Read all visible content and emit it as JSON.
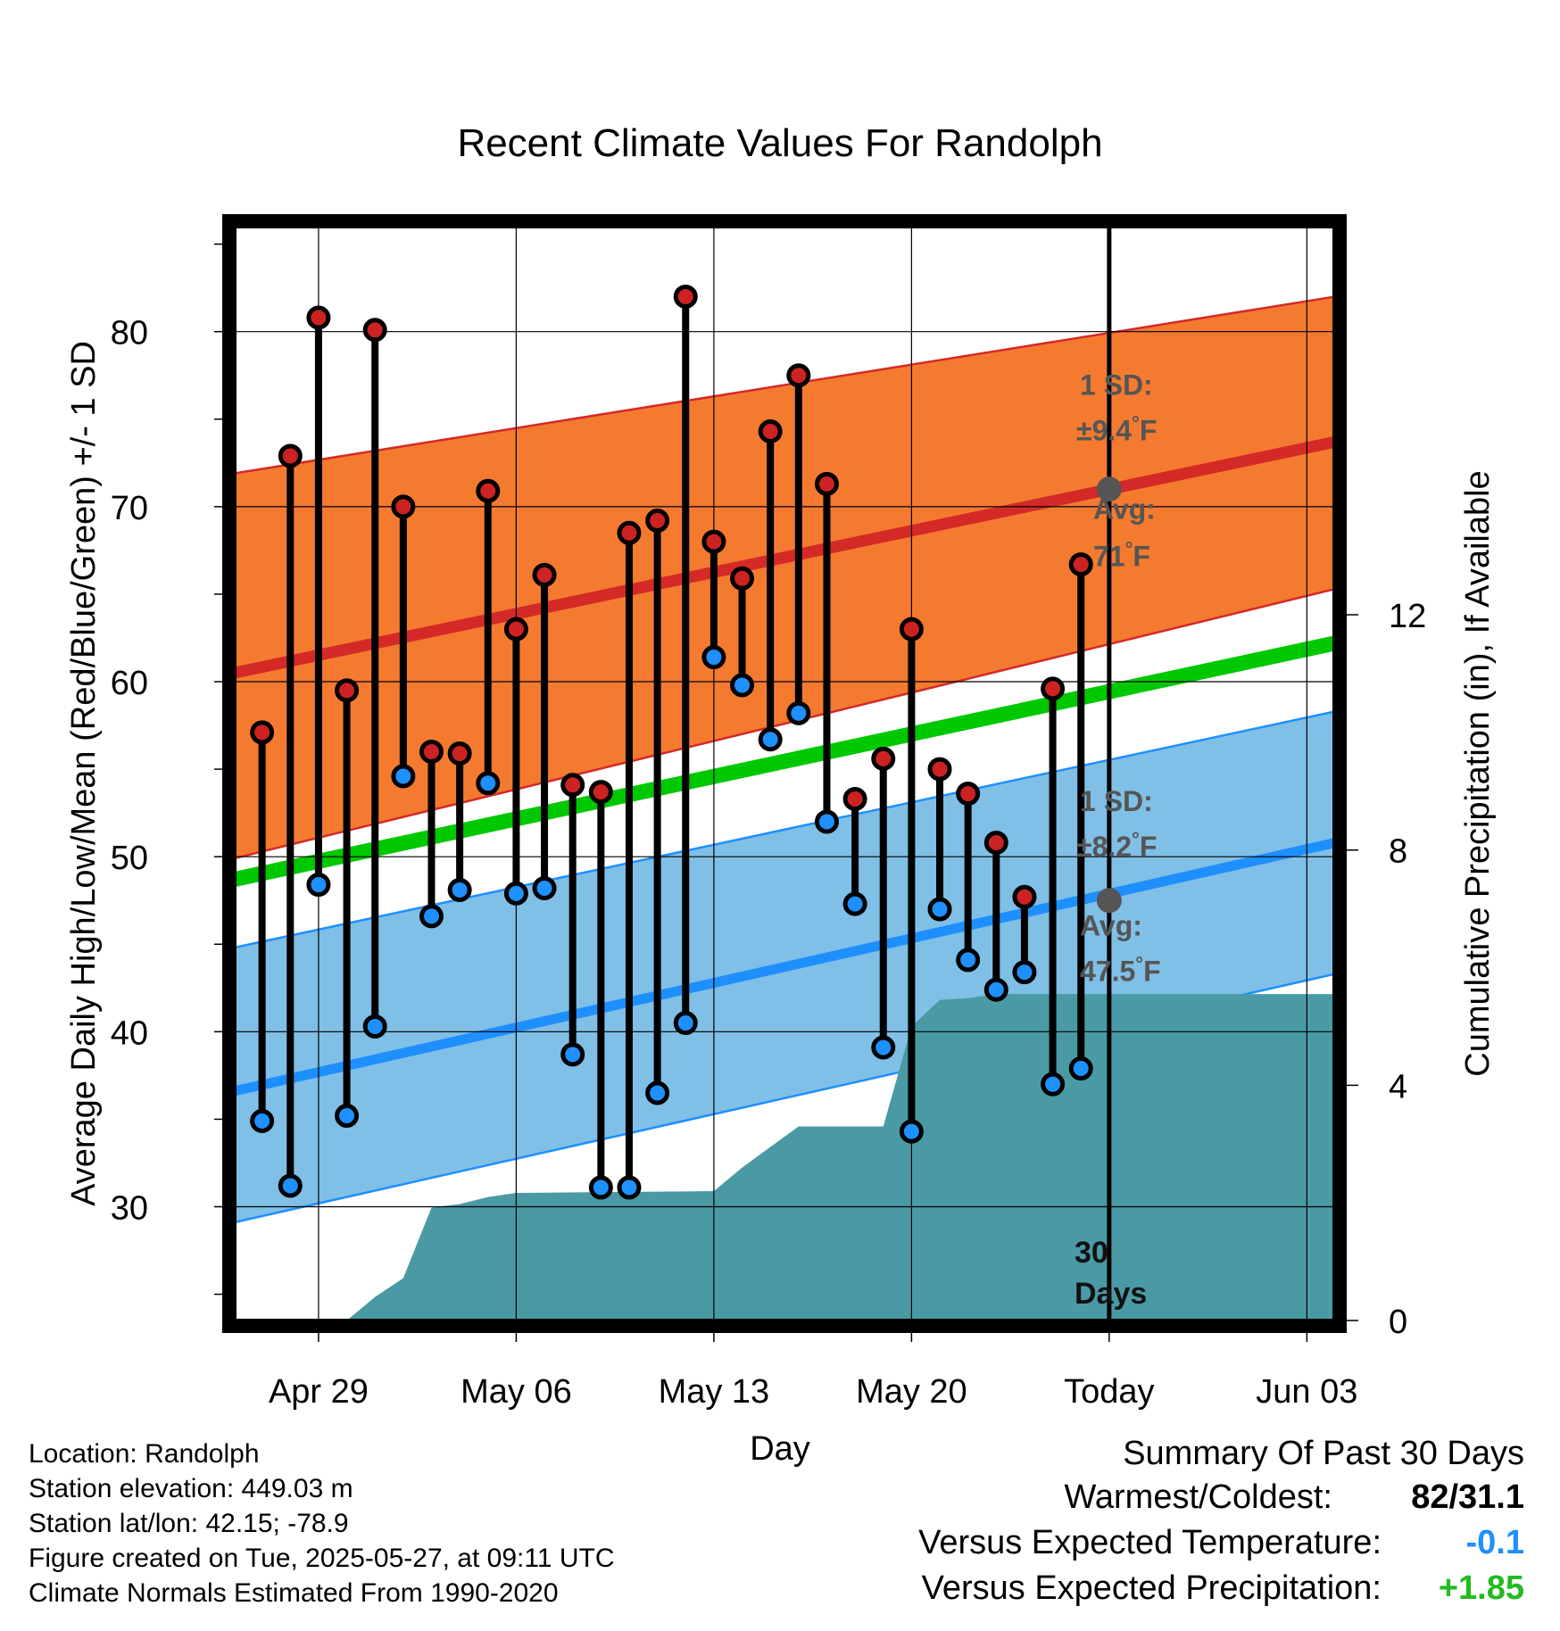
{
  "chart_data": {
    "type": "line",
    "title": "Recent Climate Values For Randolph",
    "xlabel": "Day",
    "ylabel": "Average Daily High/Low/Mean (Red/Blue/Green) +/- 1 SD",
    "y2label": "Cumulative Precipitation (in), If Available",
    "ylim": [
      23.5,
      86
    ],
    "y_ticks": [
      30,
      40,
      50,
      60,
      70,
      80
    ],
    "y2lim": [
      0,
      18.6
    ],
    "y2_ticks": [
      0,
      4,
      8,
      12
    ],
    "xlim": [
      "2025-04-26",
      "2025-06-04"
    ],
    "x_ticks": [
      {
        "date": "2025-04-29",
        "label": "Apr 29"
      },
      {
        "date": "2025-05-06",
        "label": "May 06"
      },
      {
        "date": "2025-05-13",
        "label": "May 13"
      },
      {
        "date": "2025-05-20",
        "label": "May 20"
      },
      {
        "date": "2025-05-27",
        "label": "Today"
      },
      {
        "date": "2025-06-03",
        "label": "Jun 03"
      }
    ],
    "grid": true,
    "today": "2025-05-27",
    "today_label": "30 Days",
    "normals_dates": [
      "2025-04-26",
      "2025-06-04"
    ],
    "normal_high": [
      60.5,
      73.7
    ],
    "normal_high_sd_upper": [
      71.9,
      82.0
    ],
    "normal_high_sd_lower": [
      49.9,
      65.3
    ],
    "normal_mean": [
      48.7,
      62.2
    ],
    "normal_low": [
      36.6,
      50.8
    ],
    "normal_low_sd_upper": [
      44.8,
      58.3
    ],
    "normal_low_sd_lower": [
      29.1,
      43.3
    ],
    "daily": {
      "dates": [
        "2025-04-27",
        "2025-04-28",
        "2025-04-29",
        "2025-04-30",
        "2025-05-01",
        "2025-05-02",
        "2025-05-03",
        "2025-05-04",
        "2025-05-05",
        "2025-05-06",
        "2025-05-07",
        "2025-05-08",
        "2025-05-09",
        "2025-05-10",
        "2025-05-11",
        "2025-05-12",
        "2025-05-13",
        "2025-05-14",
        "2025-05-15",
        "2025-05-16",
        "2025-05-17",
        "2025-05-18",
        "2025-05-19",
        "2025-05-20",
        "2025-05-21",
        "2025-05-22",
        "2025-05-23",
        "2025-05-24",
        "2025-05-25",
        "2025-05-26"
      ],
      "high": [
        57.1,
        72.9,
        80.8,
        59.5,
        80.1,
        70.0,
        56.0,
        55.9,
        70.9,
        63.0,
        66.1,
        54.1,
        53.7,
        68.5,
        69.2,
        82.0,
        68.0,
        65.9,
        74.3,
        77.5,
        71.3,
        53.3,
        55.6,
        63.0,
        55.0,
        53.6,
        50.8,
        47.7,
        59.6,
        66.7
      ],
      "low": [
        34.9,
        31.2,
        48.4,
        35.2,
        40.3,
        54.6,
        46.6,
        48.1,
        54.2,
        47.9,
        48.2,
        38.7,
        31.1,
        31.1,
        36.5,
        40.5,
        61.4,
        59.8,
        56.7,
        58.2,
        52.0,
        47.3,
        39.1,
        34.3,
        47.0,
        44.1,
        42.4,
        43.4,
        37.0,
        37.9
      ]
    },
    "precip": {
      "dates": [
        "2025-04-26",
        "2025-04-30",
        "2025-05-01",
        "2025-05-02",
        "2025-05-03",
        "2025-05-04",
        "2025-05-05",
        "2025-05-06",
        "2025-05-13",
        "2025-05-14",
        "2025-05-15",
        "2025-05-16",
        "2025-05-17",
        "2025-05-18",
        "2025-05-19",
        "2025-05-20",
        "2025-05-21",
        "2025-05-22",
        "2025-05-23",
        "2025-05-24",
        "2025-05-25",
        "2025-05-26",
        "2025-05-27",
        "2025-06-04"
      ],
      "values": [
        0,
        0,
        0.4,
        0.72,
        1.92,
        1.98,
        2.1,
        2.17,
        2.2,
        2.6,
        2.95,
        3.3,
        3.3,
        3.3,
        3.3,
        5.0,
        5.45,
        5.48,
        5.55,
        5.55,
        5.55,
        5.55,
        5.55,
        5.55
      ]
    },
    "annotations": {
      "high": {
        "sd_line1": "1 SD:",
        "sd_line2": "±9.4°F",
        "avg_line1": "Avg:",
        "avg_line2": "71°F",
        "avg_value": 71
      },
      "low": {
        "sd_line1": "1 SD:",
        "sd_line2": "±8.2°F",
        "avg_line1": "Avg:",
        "avg_line2": "47.5°F",
        "avg_value": 47.5
      }
    },
    "colors": {
      "high_band": "#f47a30",
      "high_line": "#d42a27",
      "mean_line": "#00c800",
      "low_band": "#80bfe6",
      "low_line": "#1e8fff",
      "precip": "#4a9aa5",
      "high_dot": "#cc2222",
      "low_dot": "#1e90ff"
    }
  },
  "footer": {
    "location": "Location: Randolph",
    "elevation": "Station elevation: 449.03 m",
    "latlon": "Station lat/lon: 42.15; -78.9",
    "created": "Figure created on Tue, 2025-05-27, at 09:11 UTC",
    "normals": "Climate Normals Estimated From 1990-2020"
  },
  "summary": {
    "title": "Summary Of Past 30 Days",
    "warm_cold_label": "Warmest/Coldest:",
    "warm_cold_value": "82/31.1",
    "temp_label": "Versus Expected Temperature:",
    "temp_value": "-0.1",
    "temp_color": "#1e90ff",
    "precip_label": "Versus Expected Precipitation:",
    "precip_value": "+1.85",
    "precip_color": "#22bb22"
  }
}
